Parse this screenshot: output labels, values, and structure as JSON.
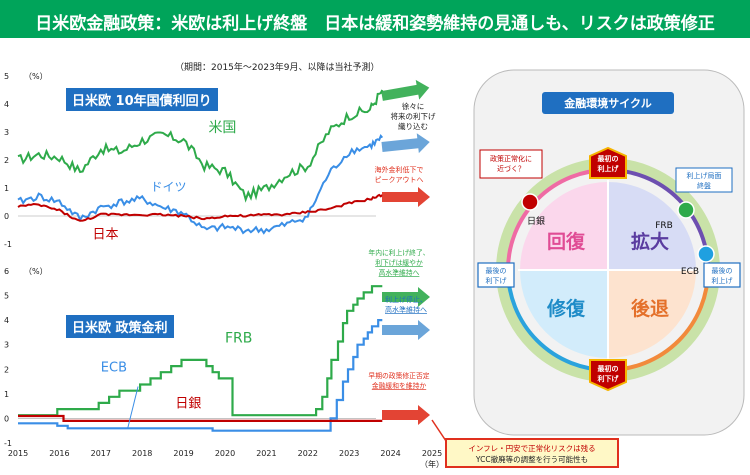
{
  "banner": {
    "title": "日米欧金融政策：米欧は利上げ終盤　日本は緩和姿勢維持の見通しも、リスクは政策修正"
  },
  "period_note": "（期間：2015年～2023年9月、以降は当社予測）",
  "colors": {
    "us": "#2eaa4a",
    "germany": "#3a8ee6",
    "japan": "#c00000",
    "arrow_blue": "#5b9bd5",
    "arrow_green": "#2eaa4a",
    "arrow_red": "#e0301e"
  },
  "x_axis": {
    "ticks": [
      "2015",
      "2016",
      "2017",
      "2018",
      "2019",
      "2020",
      "2021",
      "2022",
      "2023",
      "2024",
      "2025"
    ],
    "unit": "（年）"
  },
  "chart_data": [
    {
      "type": "line",
      "title": "日米欧 10年国債利回り",
      "ylabel": "（%）",
      "ylim": [
        -1,
        5
      ],
      "yticks": [
        "-1",
        "0",
        "1",
        "2",
        "3",
        "4",
        "5"
      ],
      "x": [
        2015.0,
        2015.5,
        2016.0,
        2016.5,
        2017.0,
        2017.5,
        2018.0,
        2018.5,
        2019.0,
        2019.5,
        2020.0,
        2020.5,
        2021.0,
        2021.5,
        2022.0,
        2022.5,
        2023.0,
        2023.5,
        2023.8
      ],
      "series": [
        {
          "name": "米国",
          "key": "us",
          "values": [
            2.0,
            2.2,
            2.1,
            1.6,
            2.4,
            2.3,
            2.7,
            2.9,
            2.7,
            1.8,
            1.6,
            0.7,
            1.0,
            1.5,
            1.8,
            3.0,
            3.6,
            3.8,
            4.5
          ]
        },
        {
          "name": "ドイツ",
          "key": "germany",
          "values": [
            0.5,
            0.7,
            0.5,
            -0.1,
            0.3,
            0.5,
            0.6,
            0.3,
            0.1,
            -0.5,
            -0.4,
            -0.5,
            -0.5,
            -0.3,
            0.0,
            1.5,
            2.3,
            2.5,
            2.8
          ]
        },
        {
          "name": "日本",
          "key": "japan",
          "values": [
            0.35,
            0.4,
            0.2,
            -0.2,
            0.05,
            0.05,
            0.05,
            0.05,
            0.0,
            -0.1,
            0.0,
            0.0,
            0.05,
            0.05,
            0.15,
            0.25,
            0.45,
            0.6,
            0.75
          ]
        }
      ],
      "annotations": {
        "us": [
          "徐々に",
          "将来の利下げ",
          "織り込む"
        ],
        "germany": [],
        "japan": [
          "海外金利低下で",
          "ピークアウトへ"
        ]
      }
    },
    {
      "type": "line",
      "title": "日米欧 政策金利",
      "ylabel": "（%）",
      "ylim": [
        -1,
        6
      ],
      "yticks": [
        "-1",
        "0",
        "1",
        "2",
        "3",
        "4",
        "5",
        "6"
      ],
      "series": [
        {
          "name": "FRB",
          "key": "us",
          "steps": [
            [
              2015.0,
              0.13
            ],
            [
              2015.95,
              0.38
            ],
            [
              2016.95,
              0.63
            ],
            [
              2017.2,
              0.88
            ],
            [
              2017.45,
              1.13
            ],
            [
              2017.95,
              1.38
            ],
            [
              2018.2,
              1.63
            ],
            [
              2018.45,
              1.88
            ],
            [
              2018.7,
              2.13
            ],
            [
              2018.95,
              2.38
            ],
            [
              2019.55,
              2.13
            ],
            [
              2019.7,
              1.88
            ],
            [
              2019.85,
              1.63
            ],
            [
              2020.18,
              0.13
            ],
            [
              2022.2,
              0.38
            ],
            [
              2022.35,
              0.88
            ],
            [
              2022.47,
              1.63
            ],
            [
              2022.57,
              2.38
            ],
            [
              2022.73,
              3.13
            ],
            [
              2022.85,
              3.88
            ],
            [
              2022.95,
              4.38
            ],
            [
              2023.1,
              4.63
            ],
            [
              2023.2,
              4.88
            ],
            [
              2023.35,
              5.13
            ],
            [
              2023.55,
              5.38
            ],
            [
              2023.8,
              5.38
            ]
          ]
        },
        {
          "name": "ECB",
          "key": "germany",
          "steps": [
            [
              2015.0,
              -0.2
            ],
            [
              2015.95,
              -0.3
            ],
            [
              2016.2,
              -0.4
            ],
            [
              2019.7,
              -0.5
            ],
            [
              2022.55,
              0.0
            ],
            [
              2022.7,
              0.75
            ],
            [
              2022.85,
              1.5
            ],
            [
              2022.97,
              2.0
            ],
            [
              2023.1,
              2.5
            ],
            [
              2023.2,
              3.0
            ],
            [
              2023.35,
              3.25
            ],
            [
              2023.45,
              3.5
            ],
            [
              2023.55,
              3.75
            ],
            [
              2023.7,
              4.0
            ],
            [
              2023.8,
              4.0
            ]
          ]
        },
        {
          "name": "日銀",
          "key": "japan",
          "steps": [
            [
              2015.0,
              0.1
            ],
            [
              2016.1,
              -0.1
            ],
            [
              2023.8,
              -0.1
            ]
          ]
        }
      ],
      "annotations": {
        "us": [
          "年内に利上げ終了、",
          "利下げは緩やか",
          "高水準維持へ"
        ],
        "germany": [
          "利上げ停止、",
          "高水準維持へ"
        ],
        "japan": [
          "早期の政策修正否定",
          "金融緩和を維持か"
        ]
      }
    }
  ],
  "risk_box": {
    "line1": "インフレ・円安で正常化リスクは残る",
    "line2": "YCC撤廃等の調整を行う可能性も"
  },
  "cycle": {
    "title": "金融環境サイクル",
    "quadrants": {
      "top_left": "回復",
      "top_right": "拡大",
      "bottom_left": "修復",
      "bottom_right": "後退"
    },
    "labels": {
      "top_hike": [
        "最初の",
        "利上げ"
      ],
      "bottom_cut": [
        "最初の",
        "利下げ"
      ],
      "left_cut": [
        "最後の",
        "利下げ"
      ],
      "right_hike": [
        "最後の",
        "利上げ"
      ],
      "normalization": [
        "政策正常化に",
        "近づく？"
      ],
      "hike_end": [
        "利上げ局面",
        "終盤"
      ]
    },
    "markers": [
      {
        "name": "日銀",
        "color": "#c00000"
      },
      {
        "name": "FRB",
        "color": "#2eaa4a"
      },
      {
        "name": "ECB",
        "color": "#1fa0e0"
      }
    ]
  }
}
